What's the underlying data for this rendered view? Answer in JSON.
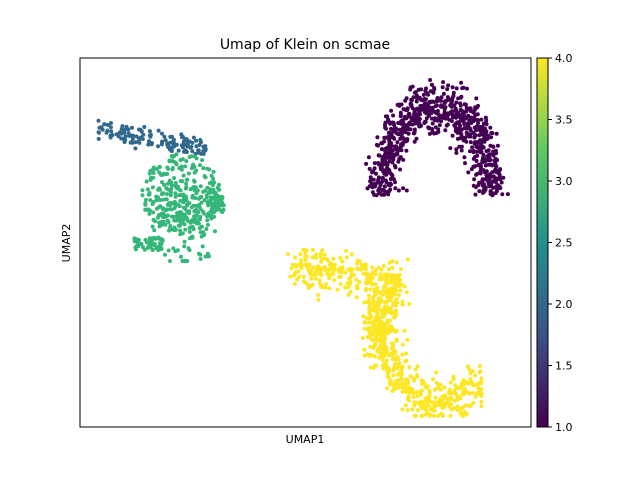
{
  "chart_data": {
    "type": "scatter",
    "title": "Umap of Klein on scmae",
    "xlabel": "UMAP1",
    "ylabel": "UMAP2",
    "x_ticks_shown": false,
    "y_ticks_shown": false,
    "grid": false,
    "legend": "none",
    "colorbar": {
      "label": "",
      "range": [
        1.0,
        4.0
      ],
      "ticks": [
        "1.0",
        "1.5",
        "2.0",
        "2.5",
        "3.0",
        "3.5",
        "4.0"
      ],
      "colormap": "viridis",
      "stops": [
        "#440154",
        "#3b528b",
        "#21918c",
        "#5ec962",
        "#fde725"
      ]
    },
    "clusters": [
      {
        "value": 2,
        "color": "#31688e",
        "approx_points": 140,
        "description_shape": "band",
        "region": {
          "xmin": 0.04,
          "xmax": 0.28,
          "ymin": 0.74,
          "ymax": 0.83
        }
      },
      {
        "value": 3,
        "color": "#35b779",
        "approx_points": 480,
        "description_shape": "blob",
        "region": {
          "xmin": 0.11,
          "xmax": 0.32,
          "ymin": 0.45,
          "ymax": 0.74
        }
      },
      {
        "value": 1,
        "color": "#440154",
        "approx_points": 780,
        "description_shape": "arch",
        "region": {
          "xmin": 0.62,
          "xmax": 0.96,
          "ymin": 0.61,
          "ymax": 0.96
        }
      },
      {
        "value": 4,
        "color": "#fde725",
        "approx_points": 820,
        "description_shape": "s-curve",
        "region": {
          "xmin": 0.46,
          "xmax": 0.89,
          "ymin": 0.03,
          "ymax": 0.48
        }
      }
    ]
  }
}
